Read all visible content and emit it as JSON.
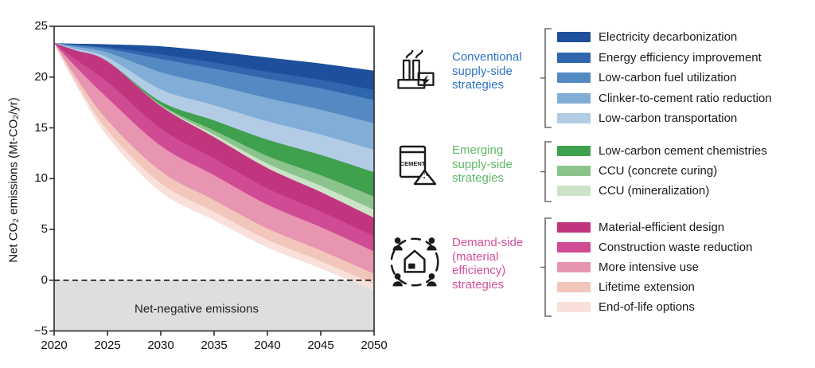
{
  "chart": {
    "y_axis_title": "Net CO₂ emissions (Mt-CO₂/yr)",
    "net_negative_label": "Net-negative emissions",
    "y_tick_labels": [
      "25",
      "20",
      "15",
      "10",
      "5",
      "0",
      "−5"
    ],
    "x_tick_labels": [
      "2020",
      "2025",
      "2030",
      "2035",
      "2040",
      "2045",
      "2050"
    ]
  },
  "chart_data": {
    "type": "area",
    "stacked": true,
    "title": "",
    "xlabel": "",
    "ylabel": "Net CO₂ emissions (Mt-CO₂/yr)",
    "xlim": [
      2020,
      2050
    ],
    "ylim": [
      -5,
      25
    ],
    "grid": false,
    "x": [
      2020,
      2022,
      2025,
      2030,
      2035,
      2040,
      2045,
      2050
    ],
    "baseline_top": [
      23.3,
      23.25,
      23.2,
      23.0,
      22.5,
      21.9,
      21.3,
      20.6
    ],
    "series": [
      {
        "name": "Electricity decarbonization",
        "color": "#1e4f9c",
        "reduction": [
          0,
          0.1,
          0.3,
          0.8,
          1.1,
          1.4,
          1.6,
          1.9
        ]
      },
      {
        "name": "Energy efficiency improvement",
        "color": "#2f66ae",
        "reduction": [
          0,
          0.05,
          0.15,
          0.45,
          0.6,
          0.7,
          0.85,
          1.0
        ]
      },
      {
        "name": "Low-carbon fuel utilization",
        "color": "#5489c4",
        "reduction": [
          0,
          0.15,
          0.35,
          1.3,
          1.6,
          1.9,
          2.1,
          2.3
        ]
      },
      {
        "name": "Clinker-to-cement ratio reduction",
        "color": "#82add7",
        "reduction": [
          0,
          0.2,
          0.5,
          1.7,
          2.0,
          2.3,
          2.45,
          2.6
        ]
      },
      {
        "name": "Low-carbon transportation",
        "color": "#b3cce6",
        "reduction": [
          0,
          0.15,
          0.4,
          1.2,
          1.5,
          1.8,
          2.0,
          2.2
        ]
      },
      {
        "name": "Low-carbon cement chemistries",
        "color": "#3fa04e",
        "reduction": [
          0,
          0.0,
          0.0,
          0.3,
          1.0,
          1.6,
          2.0,
          2.4
        ]
      },
      {
        "name": "CCU (concrete curing)",
        "color": "#8cc48d",
        "reduction": [
          0,
          0.0,
          0.0,
          0.1,
          0.4,
          0.75,
          1.05,
          1.3
        ]
      },
      {
        "name": "CCU (mineralization)",
        "color": "#cde3c8",
        "reduction": [
          0,
          0.0,
          0.0,
          0.05,
          0.25,
          0.45,
          0.6,
          0.8
        ]
      },
      {
        "name": "Material-efficient design",
        "color": "#c1357f",
        "reduction": [
          0,
          0.9,
          2.0,
          2.2,
          2.1,
          2.0,
          1.9,
          1.8
        ]
      },
      {
        "name": "Construction waste reduction",
        "color": "#cf4b93",
        "reduction": [
          0,
          0.7,
          1.6,
          1.7,
          1.65,
          1.6,
          1.55,
          1.5
        ]
      },
      {
        "name": "More intensive use",
        "color": "#e795b0",
        "reduction": [
          0,
          1.0,
          2.2,
          2.5,
          2.45,
          2.35,
          2.3,
          2.2
        ]
      },
      {
        "name": "Lifetime extension",
        "color": "#f2c6bb",
        "reduction": [
          0,
          0.45,
          1.0,
          1.2,
          1.15,
          1.1,
          1.05,
          1.0
        ]
      },
      {
        "name": "End-of-life options",
        "color": "#f9e0da",
        "reduction": [
          0,
          0.2,
          0.5,
          0.8,
          0.75,
          0.7,
          0.65,
          0.6
        ]
      }
    ],
    "net_emissions": [
      23.3,
      19.35,
      14.2,
      8.7,
      5.95,
      3.25,
      1.2,
      -1.0
    ],
    "zero_line": {
      "value": 0,
      "style": "dashed",
      "color": "#111111"
    },
    "net_negative_zone": {
      "from": 0,
      "to": -5,
      "fill": "#dedede",
      "label": "Net-negative emissions"
    }
  },
  "legend": {
    "groups": [
      {
        "icon": "factory-icon",
        "label": "Conventional supply-side strategies",
        "color": "#2e74c5",
        "items": [
          {
            "label": "Electricity decarbonization",
            "color": "#1e4f9c"
          },
          {
            "label": "Energy efficiency improvement",
            "color": "#2f66ae"
          },
          {
            "label": "Low-carbon fuel utilization",
            "color": "#5489c4"
          },
          {
            "label": "Clinker-to-cement ratio reduction",
            "color": "#82add7"
          },
          {
            "label": "Low-carbon transportation",
            "color": "#b3cce6"
          }
        ]
      },
      {
        "icon": "cement-bag-icon",
        "label": "Emerging supply-side strategies",
        "color": "#5eb96a",
        "items": [
          {
            "label": "Low-carbon cement chemistries",
            "color": "#3fa04e"
          },
          {
            "label": "CCU (concrete curing)",
            "color": "#8cc48d"
          },
          {
            "label": "CCU (mineralization)",
            "color": "#cde3c8"
          }
        ]
      },
      {
        "icon": "community-demand-icon",
        "label": "Demand-side (material efficiency) strategies",
        "color": "#d3509c",
        "items": [
          {
            "label": "Material-efficient design",
            "color": "#c1357f"
          },
          {
            "label": "Construction waste reduction",
            "color": "#cf4b93"
          },
          {
            "label": "More intensive use",
            "color": "#e795b0"
          },
          {
            "label": "Lifetime extension",
            "color": "#f2c6bb"
          },
          {
            "label": "End-of-life options",
            "color": "#f9e0da"
          }
        ]
      }
    ]
  }
}
